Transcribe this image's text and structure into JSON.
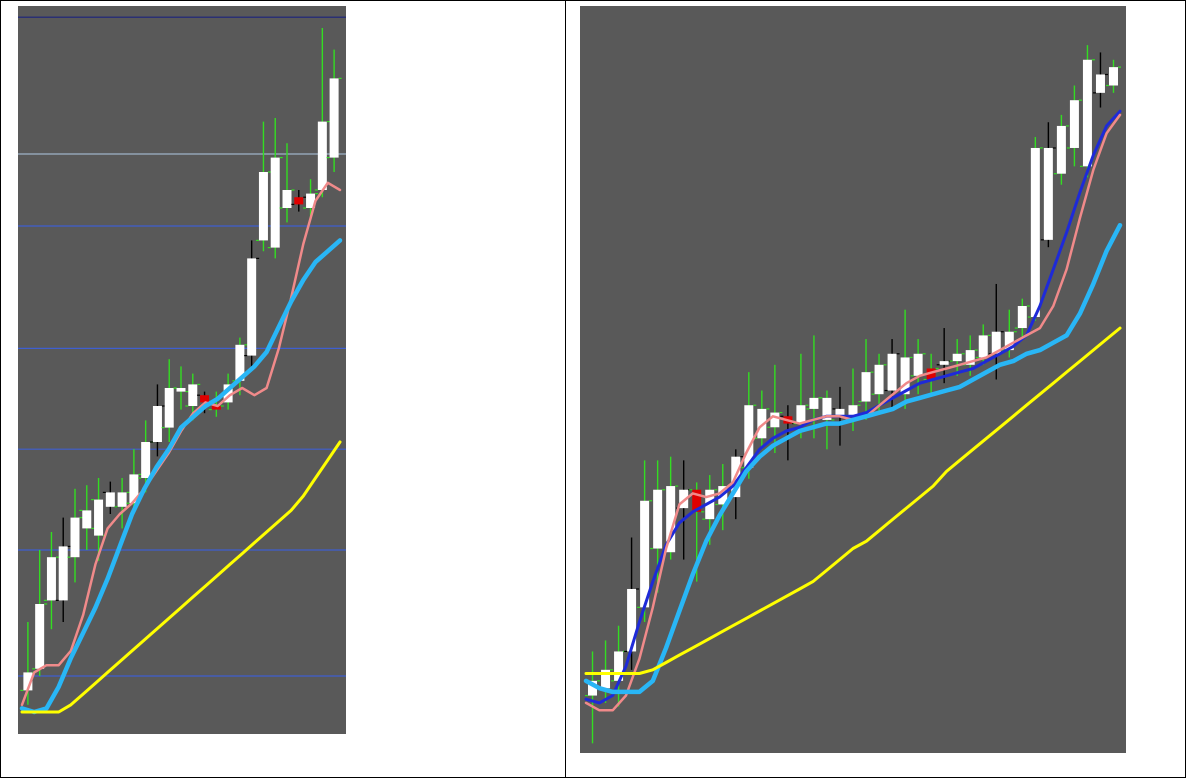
{
  "chart_data": [
    {
      "type": "candlestick",
      "title": "",
      "xlabel": "",
      "ylabel": "",
      "ylim": [
        0,
        100
      ],
      "grid": false,
      "background": "#595959",
      "horizontal_levels": [
        {
          "value": 99.0,
          "color": "#1a237e"
        },
        {
          "value": 80.0,
          "color": "#9fb3c8"
        },
        {
          "value": 70.0,
          "color": "#3f5fd0"
        },
        {
          "value": 53.0,
          "color": "#3f5fd0"
        },
        {
          "value": 39.0,
          "color": "#3f5fd0"
        },
        {
          "value": 25.0,
          "color": "#3f5fd0"
        },
        {
          "value": 7.5,
          "color": "#3f5fd0"
        }
      ],
      "candles": [
        {
          "o": 5.5,
          "c": 8.0,
          "h": 15.0,
          "l": 3.5,
          "color": "white"
        },
        {
          "o": 8.5,
          "c": 17.5,
          "h": 25.0,
          "l": 7.5,
          "color": "white"
        },
        {
          "o": 18.0,
          "c": 24.0,
          "h": 27.5,
          "l": 14.0,
          "color": "white"
        },
        {
          "o": 18.0,
          "c": 25.5,
          "h": 29.5,
          "l": 15.0,
          "color": "white"
        },
        {
          "o": 24.0,
          "c": 29.5,
          "h": 33.5,
          "l": 20.5,
          "color": "white"
        },
        {
          "o": 30.5,
          "c": 28.0,
          "h": 34.0,
          "l": 25.0,
          "color": "white"
        },
        {
          "o": 32.0,
          "c": 27.0,
          "h": 35.0,
          "l": 23.5,
          "color": "white"
        },
        {
          "o": 33.0,
          "c": 31.0,
          "h": 34.5,
          "l": 30.0,
          "color": "white"
        },
        {
          "o": 31.0,
          "c": 33.0,
          "h": 35.0,
          "l": 28.0,
          "color": "white"
        },
        {
          "o": 31.5,
          "c": 35.5,
          "h": 39.0,
          "l": 30.0,
          "color": "white"
        },
        {
          "o": 35.0,
          "c": 40.0,
          "h": 43.0,
          "l": 33.0,
          "color": "white"
        },
        {
          "o": 40.0,
          "c": 45.0,
          "h": 48.0,
          "l": 38.0,
          "color": "white"
        },
        {
          "o": 42.0,
          "c": 47.5,
          "h": 51.5,
          "l": 40.0,
          "color": "white"
        },
        {
          "o": 47.5,
          "c": 47.0,
          "h": 50.5,
          "l": 44.5,
          "color": "white"
        },
        {
          "o": 45.0,
          "c": 48.0,
          "h": 49.5,
          "l": 43.0,
          "color": "white"
        },
        {
          "o": 46.5,
          "c": 45.5,
          "h": 47.0,
          "l": 44.0,
          "color": "red"
        },
        {
          "o": 44.5,
          "c": 45.0,
          "h": 47.0,
          "l": 43.5,
          "color": "red"
        },
        {
          "o": 45.5,
          "c": 48.0,
          "h": 49.5,
          "l": 44.5,
          "color": "white"
        },
        {
          "o": 48.5,
          "c": 53.5,
          "h": 54.5,
          "l": 46.5,
          "color": "white"
        },
        {
          "o": 52.0,
          "c": 65.5,
          "h": 68.0,
          "l": 50.5,
          "color": "white"
        },
        {
          "o": 68.0,
          "c": 77.5,
          "h": 84.5,
          "l": 66.5,
          "color": "white"
        },
        {
          "o": 67.0,
          "c": 79.5,
          "h": 85.0,
          "l": 65.5,
          "color": "white"
        },
        {
          "o": 72.5,
          "c": 75.0,
          "h": 81.5,
          "l": 70.5,
          "color": "white"
        },
        {
          "o": 73.0,
          "c": 74.0,
          "h": 75.0,
          "l": 72.0,
          "color": "red"
        },
        {
          "o": 72.5,
          "c": 74.5,
          "h": 76.5,
          "l": 71.0,
          "color": "white"
        },
        {
          "o": 75.0,
          "c": 84.5,
          "h": 97.5,
          "l": 74.0,
          "color": "white"
        },
        {
          "o": 79.5,
          "c": 90.5,
          "h": 94.5,
          "l": 77.5,
          "color": "white"
        }
      ],
      "lines": [
        {
          "color": "#f08a8a",
          "values": [
            3.5,
            8.0,
            9.0,
            9.0,
            11.0,
            16.0,
            23.0,
            28.0,
            30.0,
            31.5,
            33.5,
            36.0,
            38.5,
            41.5,
            44.0,
            45.5,
            45.0,
            46.5,
            47.5,
            46.5,
            47.5,
            53.0,
            60.0,
            67.5,
            73.5,
            76.0,
            75.0
          ]
        },
        {
          "color": "#29b6f6",
          "values": [
            3.0,
            2.5,
            3.0,
            6.0,
            10.0,
            13.5,
            17.0,
            21.0,
            25.5,
            30.0,
            33.5,
            36.5,
            39.0,
            42.0,
            43.5,
            45.0,
            46.0,
            47.5,
            49.0,
            50.5,
            52.5,
            56.0,
            59.5,
            62.5,
            65.0,
            66.5,
            68.0
          ]
        },
        {
          "color": "#ffff00",
          "values": [
            2.5,
            2.5,
            2.5,
            2.5,
            3.5,
            5.0,
            6.5,
            8.0,
            9.5,
            11.0,
            12.5,
            14.0,
            15.5,
            17.0,
            18.5,
            20.0,
            21.5,
            23.0,
            24.5,
            26.0,
            27.5,
            29.0,
            30.5,
            32.5,
            35.0,
            37.5,
            40.0
          ]
        }
      ]
    },
    {
      "type": "candlestick",
      "title": "",
      "xlabel": "",
      "ylabel": "",
      "ylim": [
        0,
        100
      ],
      "grid": false,
      "background": "#595959",
      "candles": [
        {
          "o": 7.0,
          "c": 9.0,
          "h": 13.0,
          "l": 0.5,
          "color": "white"
        },
        {
          "o": 8.0,
          "c": 10.5,
          "h": 14.5,
          "l": 6.0,
          "color": "white"
        },
        {
          "o": 9.0,
          "c": 13.0,
          "h": 16.5,
          "l": 5.5,
          "color": "white"
        },
        {
          "o": 13.0,
          "c": 21.5,
          "h": 28.5,
          "l": 10.5,
          "color": "white"
        },
        {
          "o": 19.0,
          "c": 33.5,
          "h": 39.0,
          "l": 17.0,
          "color": "white"
        },
        {
          "o": 27.0,
          "c": 35.0,
          "h": 39.0,
          "l": 21.0,
          "color": "white"
        },
        {
          "o": 26.5,
          "c": 35.5,
          "h": 39.5,
          "l": 25.5,
          "color": "white"
        },
        {
          "o": 32.5,
          "c": 35.0,
          "h": 39.0,
          "l": 25.5,
          "color": "white"
        },
        {
          "o": 35.0,
          "c": 32.0,
          "h": 36.0,
          "l": 22.5,
          "color": "red"
        },
        {
          "o": 31.0,
          "c": 35.0,
          "h": 37.0,
          "l": 27.5,
          "color": "white"
        },
        {
          "o": 33.0,
          "c": 35.5,
          "h": 38.5,
          "l": 29.5,
          "color": "white"
        },
        {
          "o": 34.0,
          "c": 39.5,
          "h": 40.5,
          "l": 31.0,
          "color": "white"
        },
        {
          "o": 38.0,
          "c": 46.5,
          "h": 51.0,
          "l": 36.5,
          "color": "white"
        },
        {
          "o": 42.0,
          "c": 46.0,
          "h": 48.5,
          "l": 40.5,
          "color": "white"
        },
        {
          "o": 43.5,
          "c": 45.5,
          "h": 52.0,
          "l": 40.0,
          "color": "white"
        },
        {
          "o": 45.0,
          "c": 44.0,
          "h": 46.5,
          "l": 39.0,
          "color": "red"
        },
        {
          "o": 44.0,
          "c": 46.5,
          "h": 53.5,
          "l": 42.0,
          "color": "white"
        },
        {
          "o": 46.0,
          "c": 47.5,
          "h": 56.0,
          "l": 42.0,
          "color": "white"
        },
        {
          "o": 47.5,
          "c": 44.5,
          "h": 48.5,
          "l": 40.5,
          "color": "white"
        },
        {
          "o": 46.0,
          "c": 45.0,
          "h": 49.0,
          "l": 41.0,
          "color": "white"
        },
        {
          "o": 45.0,
          "c": 46.5,
          "h": 51.5,
          "l": 43.0,
          "color": "white"
        },
        {
          "o": 47.0,
          "c": 51.0,
          "h": 55.5,
          "l": 44.5,
          "color": "white"
        },
        {
          "o": 48.0,
          "c": 52.0,
          "h": 53.5,
          "l": 45.5,
          "color": "white"
        },
        {
          "o": 48.5,
          "c": 53.5,
          "h": 55.5,
          "l": 46.0,
          "color": "white"
        },
        {
          "o": 48.0,
          "c": 53.0,
          "h": 59.5,
          "l": 46.0,
          "color": "white"
        },
        {
          "o": 50.5,
          "c": 53.5,
          "h": 55.5,
          "l": 48.0,
          "color": "white"
        },
        {
          "o": 50.0,
          "c": 51.5,
          "h": 53.5,
          "l": 48.0,
          "color": "red"
        },
        {
          "o": 52.0,
          "c": 52.5,
          "h": 57.0,
          "l": 49.5,
          "color": "white"
        },
        {
          "o": 52.5,
          "c": 53.5,
          "h": 55.5,
          "l": 50.5,
          "color": "white"
        },
        {
          "o": 52.0,
          "c": 54.0,
          "h": 56.0,
          "l": 50.5,
          "color": "white"
        },
        {
          "o": 53.0,
          "c": 56.0,
          "h": 57.5,
          "l": 52.0,
          "color": "white"
        },
        {
          "o": 53.5,
          "c": 56.5,
          "h": 63.0,
          "l": 50.0,
          "color": "white"
        },
        {
          "o": 54.0,
          "c": 56.5,
          "h": 59.5,
          "l": 53.0,
          "color": "white"
        },
        {
          "o": 57.0,
          "c": 60.0,
          "h": 61.0,
          "l": 55.5,
          "color": "white"
        },
        {
          "o": 58.5,
          "c": 81.5,
          "h": 83.0,
          "l": 58.0,
          "color": "white"
        },
        {
          "o": 69.0,
          "c": 81.5,
          "h": 85.0,
          "l": 68.0,
          "color": "white"
        },
        {
          "o": 78.0,
          "c": 84.5,
          "h": 86.0,
          "l": 76.5,
          "color": "white"
        },
        {
          "o": 81.5,
          "c": 88.0,
          "h": 90.0,
          "l": 79.0,
          "color": "white"
        },
        {
          "o": 79.0,
          "c": 93.5,
          "h": 95.5,
          "l": 77.5,
          "color": "white"
        },
        {
          "o": 89.0,
          "c": 91.5,
          "h": 94.5,
          "l": 87.0,
          "color": "white"
        },
        {
          "o": 90.0,
          "c": 92.5,
          "h": 93.5,
          "l": 89.0,
          "color": "white"
        }
      ],
      "lines": [
        {
          "color": "#1e2ad8",
          "values": [
            6.5,
            6.0,
            7.0,
            11.0,
            17.0,
            22.5,
            27.5,
            30.5,
            32.0,
            33.0,
            34.0,
            35.5,
            38.0,
            40.5,
            42.0,
            43.0,
            43.5,
            44.5,
            45.0,
            45.0,
            45.0,
            45.5,
            46.5,
            47.5,
            48.5,
            49.5,
            50.0,
            50.5,
            51.0,
            51.5,
            52.5,
            53.5,
            54.5,
            56.0,
            60.0,
            65.0,
            70.0,
            75.5,
            80.5,
            84.5,
            86.5
          ]
        },
        {
          "color": "#f08a8a",
          "values": [
            6.0,
            5.0,
            5.0,
            7.0,
            12.0,
            19.0,
            27.0,
            33.0,
            34.5,
            34.0,
            34.5,
            36.0,
            40.0,
            43.5,
            45.0,
            44.5,
            44.0,
            44.5,
            45.0,
            45.0,
            44.5,
            45.0,
            46.5,
            48.0,
            49.5,
            50.5,
            51.0,
            51.5,
            52.0,
            52.5,
            53.0,
            54.0,
            55.0,
            56.0,
            57.0,
            60.0,
            65.0,
            72.0,
            78.5,
            83.5,
            86.0
          ]
        },
        {
          "color": "#29b6f6",
          "values": [
            9.0,
            8.0,
            7.5,
            7.5,
            7.5,
            9.0,
            13.5,
            18.5,
            23.5,
            28.0,
            31.5,
            34.5,
            37.5,
            39.5,
            41.0,
            42.0,
            43.0,
            43.5,
            44.0,
            44.0,
            44.5,
            45.0,
            45.5,
            46.0,
            47.0,
            47.5,
            48.0,
            48.5,
            49.0,
            50.0,
            51.0,
            52.0,
            52.5,
            53.5,
            54.0,
            55.0,
            56.0,
            59.0,
            63.0,
            67.5,
            71.0
          ]
        },
        {
          "color": "#ffff00",
          "values": [
            10.0,
            10.0,
            10.0,
            10.0,
            10.0,
            10.5,
            11.5,
            12.5,
            13.5,
            14.5,
            15.5,
            16.5,
            17.5,
            18.5,
            19.5,
            20.5,
            21.5,
            22.5,
            24.0,
            25.5,
            27.0,
            28.0,
            29.5,
            31.0,
            32.5,
            34.0,
            35.5,
            37.5,
            39.0,
            40.5,
            42.0,
            43.5,
            45.0,
            46.5,
            48.0,
            49.5,
            51.0,
            52.5,
            54.0,
            55.5,
            57.0
          ]
        }
      ]
    }
  ]
}
